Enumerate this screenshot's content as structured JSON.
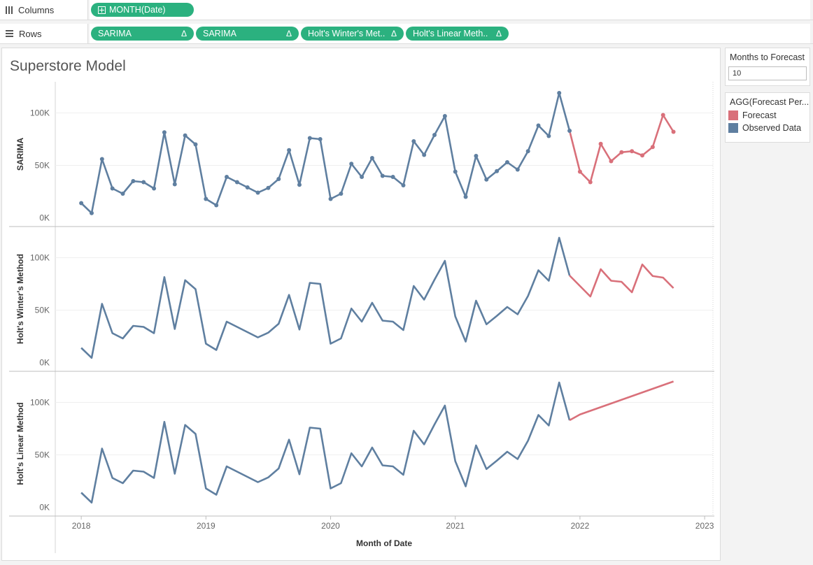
{
  "shelves": {
    "columns": {
      "label": "Columns",
      "pills": [
        "MONTH(Date)"
      ]
    },
    "rows": {
      "label": "Rows",
      "pills": [
        "SARIMA",
        "SARIMA",
        "Holt's Winter's Met..",
        "Holt's Linear Meth.."
      ],
      "delta": "Δ"
    }
  },
  "sidebar": {
    "parameter": {
      "title": "Months to Forecast",
      "value": "10"
    },
    "legend": {
      "title": "AGG(Forecast Per...",
      "items": [
        {
          "label": "Forecast",
          "color": "#d9707a"
        },
        {
          "label": "Observed Data",
          "color": "#5f7fa0"
        }
      ]
    }
  },
  "chart_data": {
    "type": "line",
    "title": "Superstore Model",
    "xlabel": "Month of Date",
    "x_ticks": [
      "2018",
      "2019",
      "2020",
      "2021",
      "2022",
      "2023"
    ],
    "x_range_months": [
      -2.5,
      60.8
    ],
    "y_ticks": [
      "0K",
      "50K",
      "100K"
    ],
    "observed_months": 48,
    "panels": [
      {
        "ylabel": "SARIMA",
        "ylim": [
          -3000,
          123000
        ],
        "markers": true,
        "observed": [
          14000,
          4500,
          56000,
          28000,
          23000,
          35000,
          34000,
          28000,
          81500,
          32000,
          78500,
          70000,
          18000,
          12000,
          39000,
          34000,
          29000,
          24000,
          28500,
          37000,
          64500,
          31500,
          76000,
          75000,
          18000,
          23000,
          51500,
          39000,
          57000,
          40000,
          39000,
          31000,
          73000,
          60000,
          79000,
          97000,
          44000,
          20000,
          59000,
          36500,
          44500,
          53000,
          46000,
          63500,
          88000,
          78000,
          119000,
          83000
        ],
        "forecast": [
          44000,
          34000,
          70500,
          54000,
          62500,
          63500,
          59500,
          67500,
          98000,
          82000
        ]
      },
      {
        "ylabel": "Holt's Winter's Method",
        "ylim": [
          -3000,
          123000
        ],
        "markers": false,
        "observed": [
          14000,
          4500,
          56000,
          28000,
          23000,
          35000,
          34000,
          28000,
          81500,
          32000,
          78500,
          70000,
          18000,
          12000,
          39000,
          34000,
          29000,
          24000,
          28500,
          37000,
          64500,
          31500,
          76000,
          75000,
          18000,
          23000,
          51500,
          39000,
          57000,
          40000,
          39000,
          31000,
          73000,
          60000,
          79000,
          97000,
          44000,
          20000,
          59000,
          36500,
          44500,
          53000,
          46000,
          63500,
          88000,
          78000,
          119000,
          83000
        ],
        "forecast": [
          73000,
          63000,
          89000,
          78000,
          77000,
          67000,
          93500,
          82500,
          81000,
          71000
        ]
      },
      {
        "ylabel": "Holt's Linear Method",
        "ylim": [
          -3000,
          123000
        ],
        "markers": false,
        "observed": [
          14000,
          4500,
          56000,
          28000,
          23000,
          35000,
          34000,
          28000,
          81500,
          32000,
          78500,
          70000,
          18000,
          12000,
          39000,
          34000,
          29000,
          24000,
          28500,
          37000,
          64500,
          31500,
          76000,
          75000,
          18000,
          23000,
          51500,
          39000,
          57000,
          40000,
          39000,
          31000,
          73000,
          60000,
          79000,
          97000,
          44000,
          20000,
          59000,
          36500,
          44500,
          53000,
          46000,
          63500,
          88000,
          78000,
          119000,
          83000
        ],
        "forecast": [
          88500,
          92000,
          95500,
          99000,
          102500,
          106000,
          109500,
          113000,
          116500,
          120000
        ]
      }
    ]
  }
}
